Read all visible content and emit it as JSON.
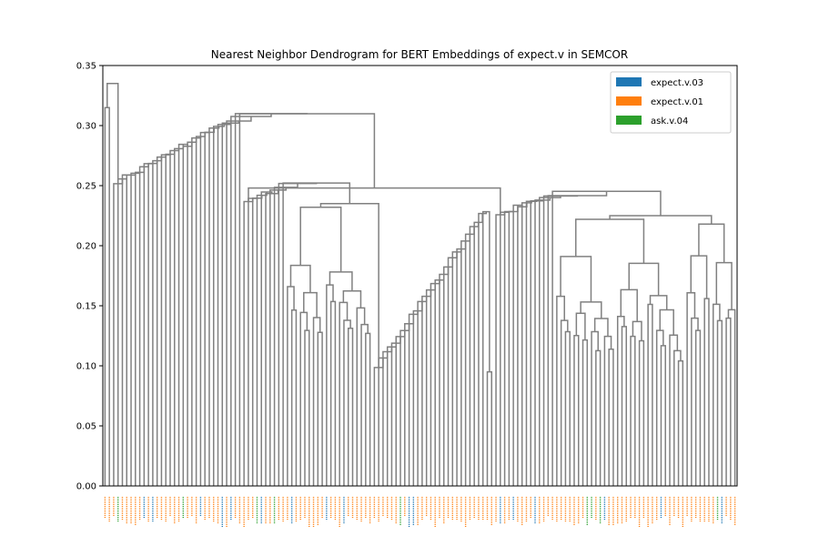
{
  "chart_data": {
    "type": "dendrogram",
    "title": "Nearest Neighbor Dendrogram for BERT Embeddings of expect.v in SEMCOR",
    "xlabel": "",
    "ylabel": "",
    "ylim": [
      0,
      0.35
    ],
    "yticks": [
      0.0,
      0.05,
      0.1,
      0.15,
      0.2,
      0.25,
      0.3,
      0.35
    ],
    "ytick_labels": [
      "0.00",
      "0.05",
      "0.10",
      "0.15",
      "0.20",
      "0.25",
      "0.30",
      "0.35"
    ],
    "grid": false,
    "legend_position": "top-right",
    "legend": [
      {
        "name": "expect.v.03",
        "color": "#1f77b4"
      },
      {
        "name": "expect.v.01",
        "color": "#ff7f0e"
      },
      {
        "name": "ask.v.04",
        "color": "#2ca02c"
      }
    ],
    "link_color": "#808080",
    "root_height": 0.335,
    "major_clusters": [
      {
        "name": "left cascade",
        "top": 0.3
      },
      {
        "name": "middle cluster",
        "top": 0.25
      },
      {
        "name": "middle subcluster",
        "top": 0.23
      },
      {
        "name": "right cluster",
        "top": 0.245
      },
      {
        "name": "far-right subcluster",
        "top": 0.225
      }
    ],
    "leaf_sense_pattern": "mostly expect.v.01 with scattered expect.v.03 and ask.v.04 leaves"
  }
}
